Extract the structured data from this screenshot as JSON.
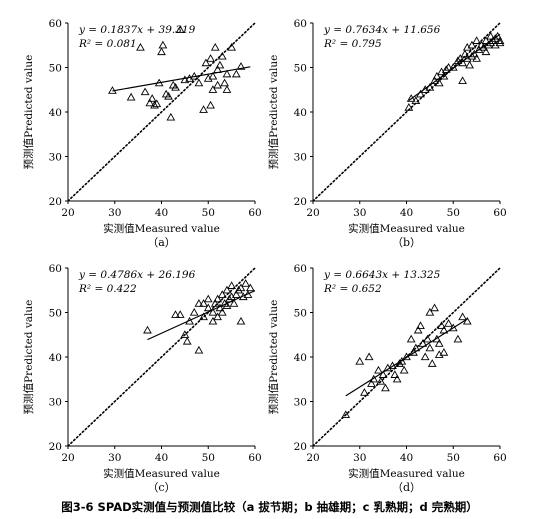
{
  "caption": "图3-6 SPAD实测值与预测值比较（a 拔节期；b 抽雄期；c 乳熟期；d 完熟期）",
  "chart_data": [
    {
      "type": "scatter",
      "panel_label": "（a）",
      "xlabel": "实测值Measured value",
      "ylabel": "预测值Predicted value",
      "xlim": [
        20,
        60
      ],
      "ylim": [
        20,
        60
      ],
      "xticks": [
        "20",
        "30",
        "40",
        "50",
        "60"
      ],
      "yticks": [
        "20",
        "30",
        "40",
        "50",
        "60"
      ],
      "equation": "y = 0.1837x + 39.319",
      "r2": "R² = 0.081",
      "fit": {
        "slope": 0.1837,
        "intercept": 39.319,
        "x_range": [
          29.5,
          59
        ]
      },
      "points": [
        [
          29.5,
          44.8
        ],
        [
          33.5,
          43.3
        ],
        [
          35.5,
          54.5
        ],
        [
          36.5,
          44.5
        ],
        [
          37.5,
          42
        ],
        [
          38,
          43
        ],
        [
          38.5,
          41.5
        ],
        [
          39,
          41.8
        ],
        [
          39.5,
          46.5
        ],
        [
          40,
          53.5
        ],
        [
          40.3,
          55
        ],
        [
          41,
          44
        ],
        [
          41.5,
          43.5
        ],
        [
          42,
          38.8
        ],
        [
          42.5,
          46
        ],
        [
          43,
          45.5
        ],
        [
          44,
          58.5
        ],
        [
          45,
          47.2
        ],
        [
          46,
          47.5
        ],
        [
          47,
          48
        ],
        [
          48,
          46.5
        ],
        [
          49,
          40.5
        ],
        [
          49.5,
          51
        ],
        [
          50,
          47.5
        ],
        [
          50.5,
          52
        ],
        [
          50.5,
          41.5
        ],
        [
          51,
          48
        ],
        [
          51,
          45
        ],
        [
          51.5,
          54.5
        ],
        [
          52,
          49.5
        ],
        [
          52,
          46
        ],
        [
          52.5,
          50.5
        ],
        [
          53,
          52.5
        ],
        [
          53.5,
          46.5
        ],
        [
          54,
          48.5
        ],
        [
          54,
          45
        ],
        [
          55,
          54.5
        ],
        [
          56,
          48.5
        ],
        [
          57,
          50.2
        ]
      ]
    },
    {
      "type": "scatter",
      "panel_label": "（b）",
      "xlabel": "实测值Measured value",
      "ylabel": "预测值Predicted value",
      "xlim": [
        20,
        60
      ],
      "ylim": [
        20,
        60
      ],
      "xticks": [
        "20",
        "30",
        "40",
        "50",
        "60"
      ],
      "yticks": [
        "20",
        "30",
        "40",
        "50",
        "60"
      ],
      "equation": "y = 0.7634x + 11.656",
      "r2": "R² = 0.795",
      "fit": {
        "slope": 0.7634,
        "intercept": 11.656,
        "x_range": [
          40.5,
          60
        ]
      },
      "points": [
        [
          40.5,
          41
        ],
        [
          41,
          43
        ],
        [
          42,
          42.5
        ],
        [
          43,
          44
        ],
        [
          44,
          45
        ],
        [
          45,
          45.5
        ],
        [
          46,
          47
        ],
        [
          46.5,
          48
        ],
        [
          47,
          46.5
        ],
        [
          47.5,
          49
        ],
        [
          48,
          48
        ],
        [
          48.5,
          49.5
        ],
        [
          49,
          50
        ],
        [
          50,
          50
        ],
        [
          51,
          51.5
        ],
        [
          51.5,
          52
        ],
        [
          52,
          47
        ],
        [
          52,
          51
        ],
        [
          52.5,
          53
        ],
        [
          53,
          54.5
        ],
        [
          53,
          52
        ],
        [
          53.5,
          50.5
        ],
        [
          54,
          52.5
        ],
        [
          54,
          55
        ],
        [
          54.5,
          53
        ],
        [
          55,
          52
        ],
        [
          55,
          56
        ],
        [
          55.5,
          54
        ],
        [
          56,
          55
        ],
        [
          56.5,
          54.5
        ],
        [
          57,
          56
        ],
        [
          57,
          53.5
        ],
        [
          57.5,
          55
        ],
        [
          58,
          55.5
        ],
        [
          58,
          57
        ],
        [
          58.5,
          56
        ],
        [
          59,
          55
        ],
        [
          59,
          56.5
        ],
        [
          59.5,
          57
        ],
        [
          60,
          56
        ],
        [
          60,
          55.5
        ]
      ]
    },
    {
      "type": "scatter",
      "panel_label": "（c）",
      "xlabel": "实测值Measured value",
      "ylabel": "预测值Predicted value",
      "xlim": [
        20,
        60
      ],
      "ylim": [
        20,
        60
      ],
      "xticks": [
        "20",
        "30",
        "40",
        "50",
        "60"
      ],
      "yticks": [
        "20",
        "30",
        "40",
        "50",
        "60"
      ],
      "equation": "y = 0.4786x + 26.196",
      "r2": "R² = 0.422",
      "fit": {
        "slope": 0.4786,
        "intercept": 26.196,
        "x_range": [
          37,
          60
        ]
      },
      "points": [
        [
          37,
          46
        ],
        [
          43,
          49.5
        ],
        [
          44,
          49.5
        ],
        [
          45,
          45
        ],
        [
          45.5,
          43.5
        ],
        [
          46,
          48
        ],
        [
          47,
          50
        ],
        [
          48,
          52
        ],
        [
          48,
          41.5
        ],
        [
          49,
          49
        ],
        [
          49,
          52
        ],
        [
          50,
          51
        ],
        [
          50,
          53
        ],
        [
          51,
          48
        ],
        [
          51,
          50
        ],
        [
          51.5,
          52
        ],
        [
          52,
          49
        ],
        [
          52,
          53
        ],
        [
          52.5,
          51
        ],
        [
          53,
          50
        ],
        [
          53,
          54
        ],
        [
          53.5,
          52
        ],
        [
          54,
          55
        ],
        [
          54,
          51.5
        ],
        [
          54.5,
          53
        ],
        [
          55,
          53.5
        ],
        [
          55,
          56
        ],
        [
          55.5,
          52
        ],
        [
          56,
          54
        ],
        [
          56.5,
          55
        ],
        [
          57,
          48
        ],
        [
          57,
          55.5
        ],
        [
          57.5,
          53.5
        ],
        [
          58,
          56.5
        ],
        [
          58.5,
          54
        ],
        [
          59,
          55.5
        ]
      ]
    },
    {
      "type": "scatter",
      "panel_label": "（d）",
      "xlabel": "实测值Measured value",
      "ylabel": "预测值Predicted value",
      "xlim": [
        20,
        60
      ],
      "ylim": [
        20,
        60
      ],
      "xticks": [
        "20",
        "30",
        "40",
        "50",
        "60"
      ],
      "yticks": [
        "20",
        "30",
        "40",
        "50",
        "60"
      ],
      "equation": "y = 0.6643x + 13.325",
      "r2": "R² = 0.652",
      "fit": {
        "slope": 0.6643,
        "intercept": 13.325,
        "x_range": [
          27,
          53
        ]
      },
      "points": [
        [
          27,
          27
        ],
        [
          30,
          39
        ],
        [
          31,
          32
        ],
        [
          32,
          40
        ],
        [
          32.5,
          34
        ],
        [
          33,
          35
        ],
        [
          34,
          37
        ],
        [
          34.5,
          34.5
        ],
        [
          35,
          36
        ],
        [
          35.5,
          33
        ],
        [
          36,
          37.5
        ],
        [
          37,
          38
        ],
        [
          37.5,
          36
        ],
        [
          38,
          35
        ],
        [
          38.5,
          38.5
        ],
        [
          39,
          39
        ],
        [
          39.5,
          37
        ],
        [
          40,
          40
        ],
        [
          41,
          44
        ],
        [
          41.5,
          41
        ],
        [
          42,
          42
        ],
        [
          42.5,
          46
        ],
        [
          43,
          47
        ],
        [
          43.5,
          43
        ],
        [
          44,
          40
        ],
        [
          44.5,
          44
        ],
        [
          45,
          42
        ],
        [
          45,
          50
        ],
        [
          45.5,
          38.5
        ],
        [
          46,
          51
        ],
        [
          46.5,
          44
        ],
        [
          47,
          43
        ],
        [
          47,
          40.5
        ],
        [
          47.5,
          47
        ],
        [
          48,
          41
        ],
        [
          48,
          46
        ],
        [
          49,
          47.5
        ],
        [
          50,
          46.5
        ],
        [
          51,
          44
        ],
        [
          52,
          49
        ],
        [
          53,
          48
        ]
      ]
    }
  ]
}
